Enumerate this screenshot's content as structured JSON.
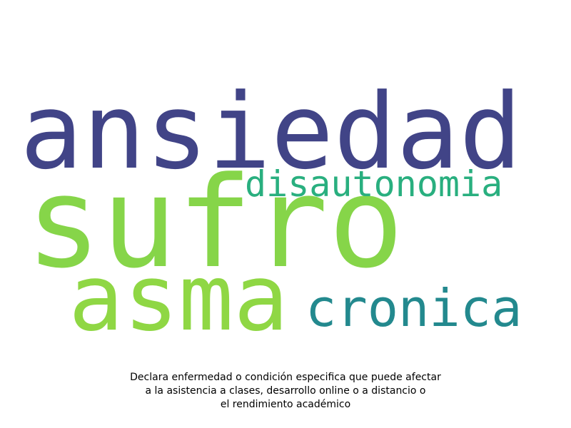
{
  "chart_data": {
    "type": "wordcloud",
    "words": [
      {
        "text": "ansiedad",
        "weight": 1.0,
        "color": "#414487"
      },
      {
        "text": "sufro",
        "weight": 1.0,
        "color": "#86d549"
      },
      {
        "text": "asma",
        "weight": 0.75,
        "color": "#8fd744"
      },
      {
        "text": "disautonomia",
        "weight": 0.35,
        "color": "#29af7f"
      },
      {
        "text": "cronica",
        "weight": 0.5,
        "color": "#23898e"
      }
    ],
    "caption_lines": [
      "Declara enfermedad o condición especifica que puede afectar",
      "a la asistencia a clases, desarrollo online o a distancio o",
      "el rendimiento académico"
    ]
  }
}
